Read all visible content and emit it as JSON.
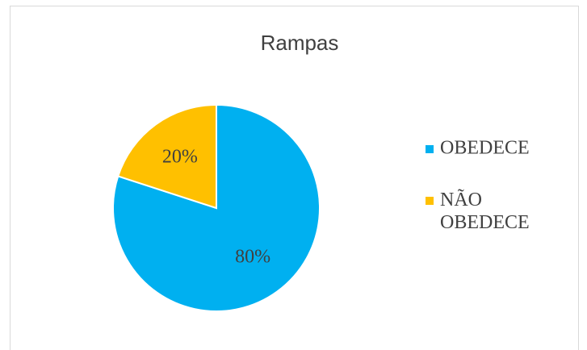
{
  "chart_data": {
    "type": "pie",
    "title": "Rampas",
    "categories": [
      "OBEDECE",
      "NÃO OBEDECE"
    ],
    "values": [
      80,
      20
    ],
    "value_labels": [
      "80%",
      "20%"
    ],
    "colors": [
      "#00b0f0",
      "#ffc000"
    ],
    "legend": "right"
  }
}
